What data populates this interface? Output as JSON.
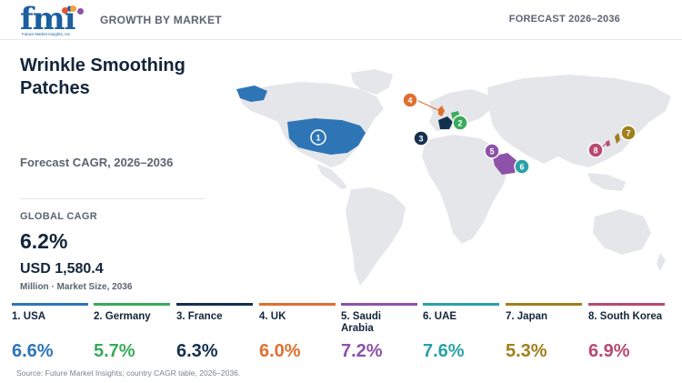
{
  "header": {
    "logo_text": "fmi",
    "logo_subtext": "Future Market Insights, Inc.",
    "left_label": "GROWTH BY MARKET",
    "right_label": "FORECAST 2026–2036"
  },
  "title": "Wrinkle Smoothing Patches",
  "subtitle": "Forecast CAGR, 2026–2036",
  "global_cagr": {
    "label": "GLOBAL CAGR",
    "value": "6.2%"
  },
  "market_size": {
    "value": "USD 1,580.4",
    "label": "Million · Market Size, 2036"
  },
  "countries": [
    {
      "rank": "1",
      "name": "1. USA",
      "cagr": "6.6%",
      "color": "#2e75b6"
    },
    {
      "rank": "2",
      "name": "2. Germany",
      "cagr": "5.7%",
      "color": "#3aaa5c"
    },
    {
      "rank": "3",
      "name": "3. France",
      "cagr": "6.3%",
      "color": "#14304f"
    },
    {
      "rank": "4",
      "name": "4. UK",
      "cagr": "6.0%",
      "color": "#e07030"
    },
    {
      "rank": "5",
      "name": "5. Saudi Arabia",
      "cagr": "7.2%",
      "color": "#8e52a8"
    },
    {
      "rank": "6",
      "name": "6. UAE",
      "cagr": "7.6%",
      "color": "#2aa1a8"
    },
    {
      "rank": "7",
      "name": "7. Japan",
      "cagr": "5.3%",
      "color": "#a07f1c"
    },
    {
      "rank": "8",
      "name": "8. South Korea",
      "cagr": "6.9%",
      "color": "#b84a6e"
    }
  ],
  "source": "Source: Future Market Insights; country CAGR table, 2026–2036."
}
